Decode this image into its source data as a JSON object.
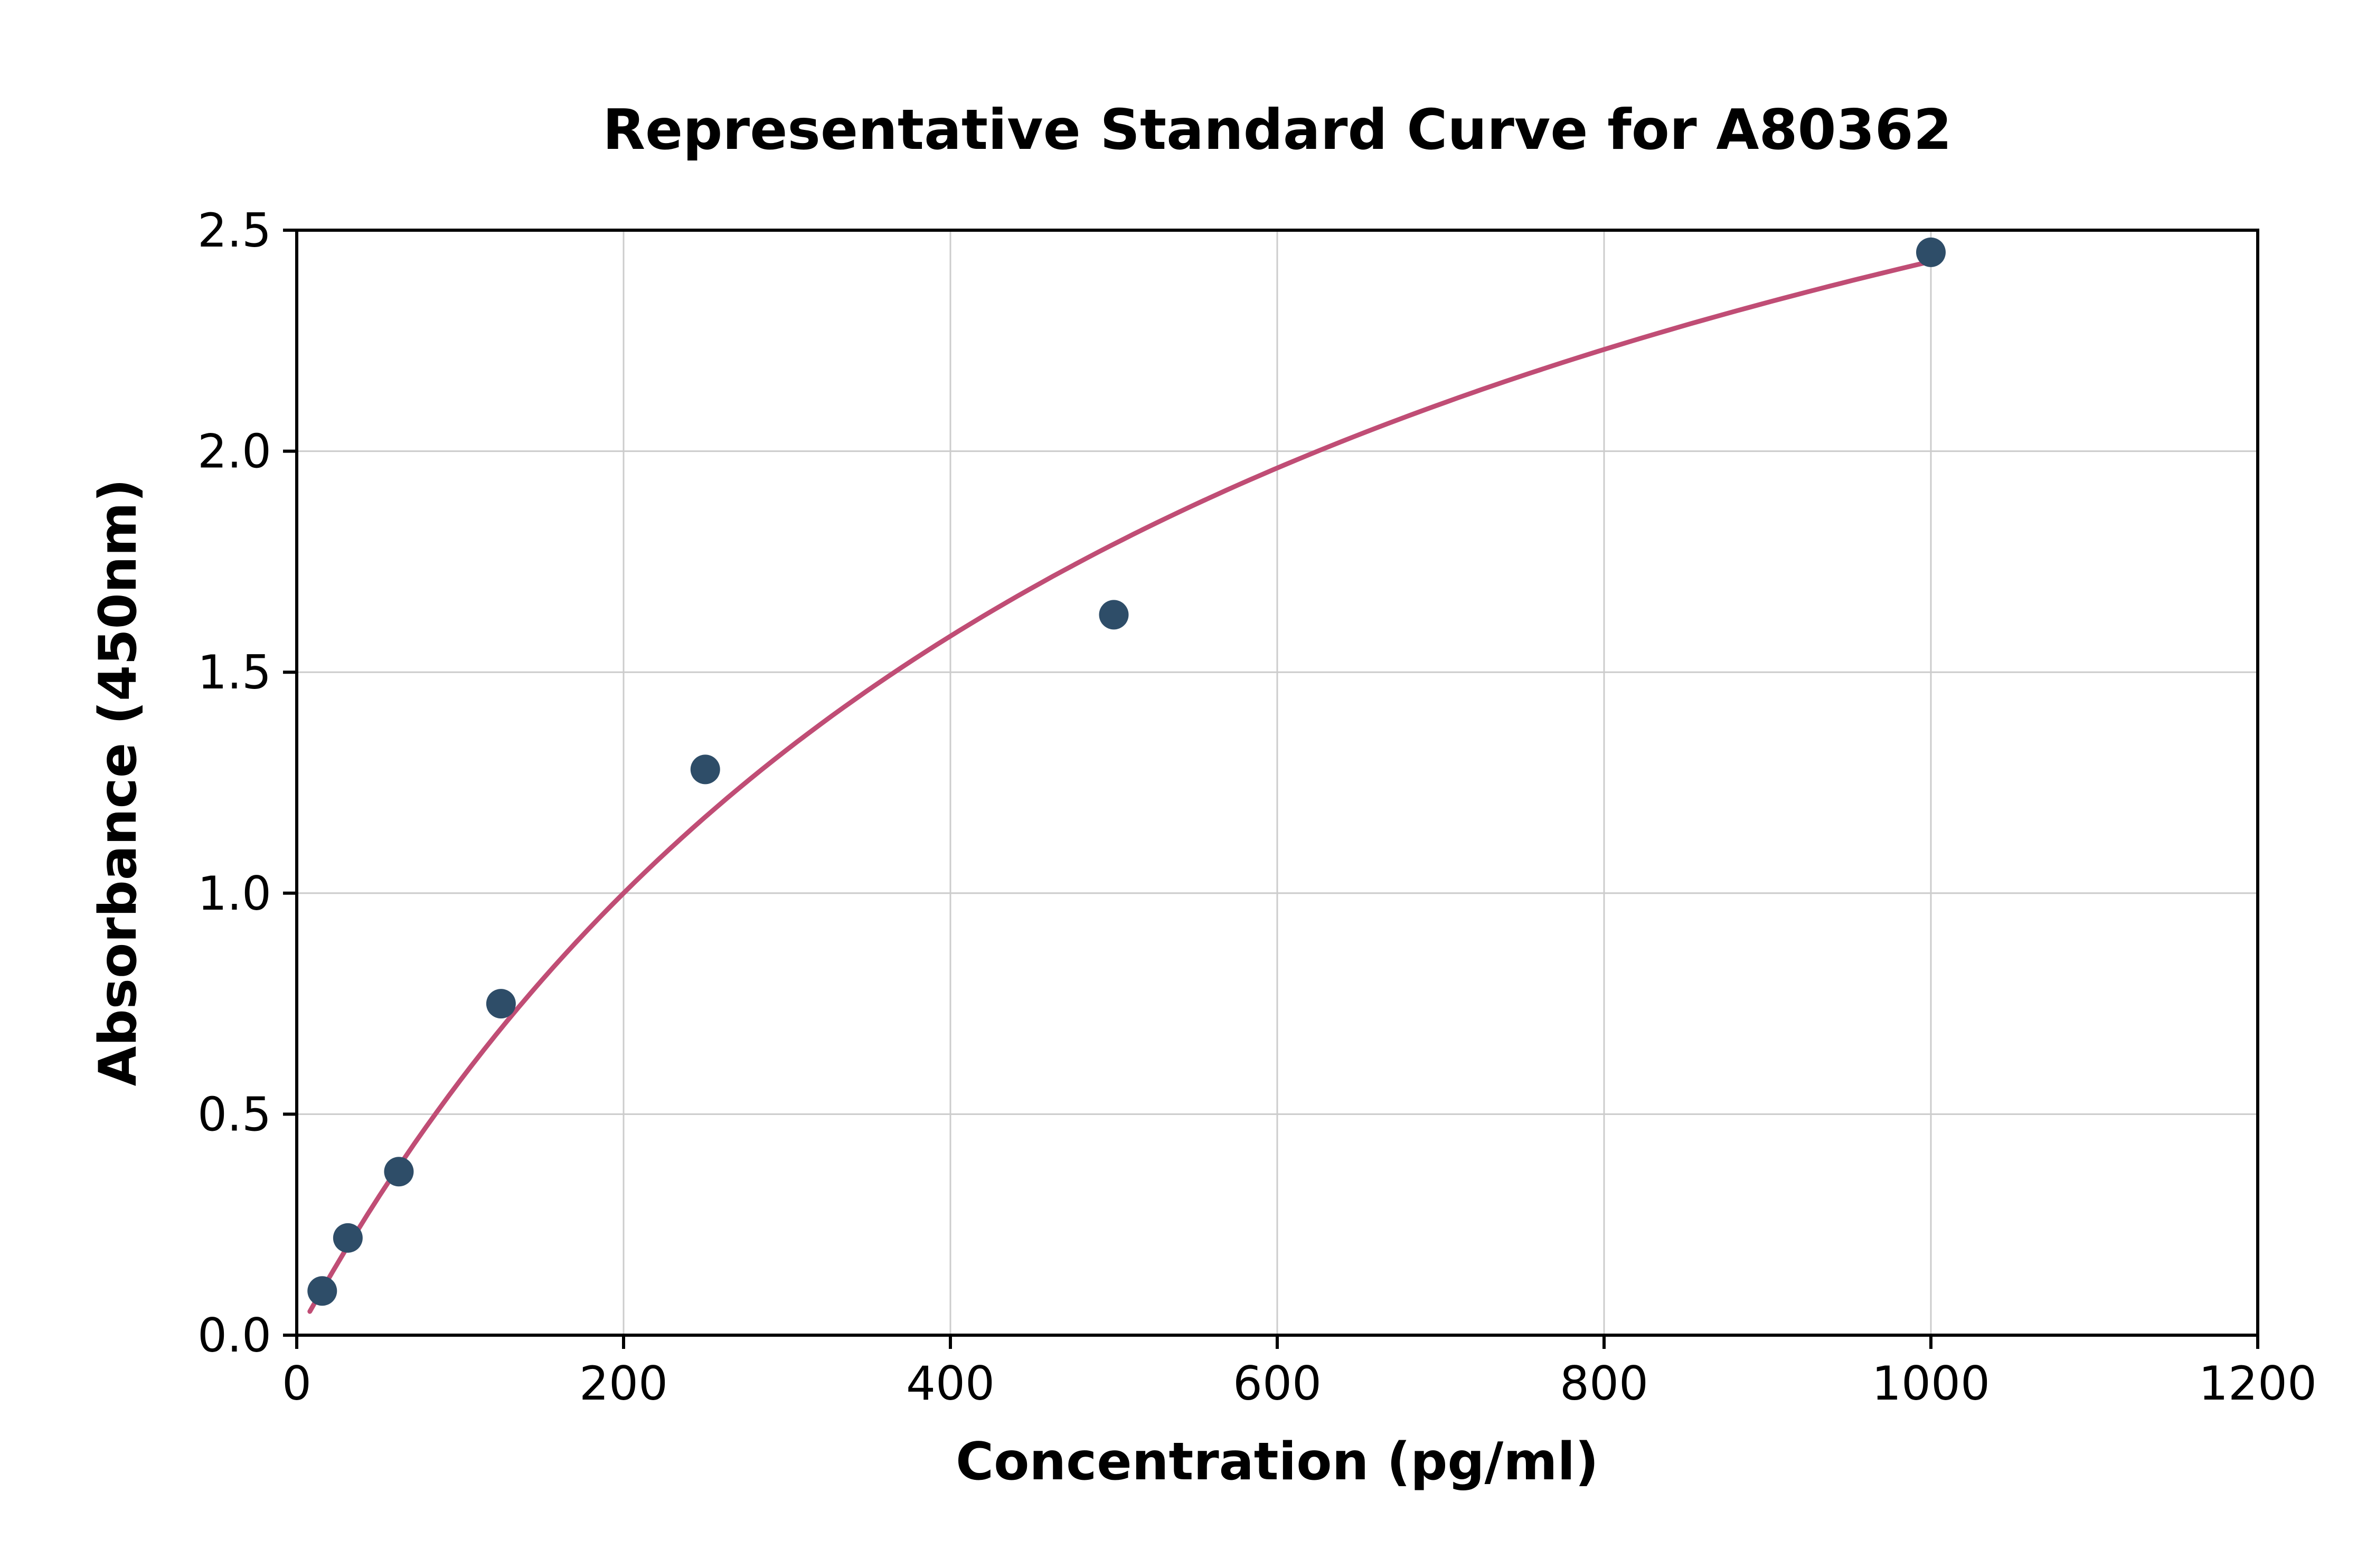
{
  "chart_data": {
    "type": "scatter",
    "title": "Representative Standard Curve for A80362",
    "xlabel": "Concentration (pg/ml)",
    "ylabel": "Absorbance (450nm)",
    "xlim": [
      0,
      1200
    ],
    "ylim": [
      0,
      2.5
    ],
    "x_ticks": [
      0,
      200,
      400,
      600,
      800,
      1000,
      1200
    ],
    "x_tick_labels": [
      "0",
      "200",
      "400",
      "600",
      "800",
      "1000",
      "1200"
    ],
    "y_ticks": [
      0,
      0.5,
      1.0,
      1.5,
      2.0,
      2.5
    ],
    "y_tick_labels": [
      "0.0",
      "0.5",
      "1.0",
      "1.5",
      "2.0",
      "2.5"
    ],
    "grid": true,
    "legend": "none",
    "points": [
      {
        "x": 15.6,
        "y": 0.1
      },
      {
        "x": 31.3,
        "y": 0.22
      },
      {
        "x": 62.5,
        "y": 0.37
      },
      {
        "x": 125,
        "y": 0.75
      },
      {
        "x": 250,
        "y": 1.28
      },
      {
        "x": 500,
        "y": 1.63
      },
      {
        "x": 1000,
        "y": 2.45
      }
    ],
    "fit_curve": {
      "type": "saturation",
      "formula": "y = a*x / (b + x)",
      "a": 3.78,
      "b": 556,
      "x_start": 8,
      "x_end": 1002
    },
    "colors": {
      "points": "#2e4d68",
      "curve": "#c04d75",
      "grid": "#cccccc",
      "axis": "#000000",
      "background": "#ffffff"
    }
  }
}
